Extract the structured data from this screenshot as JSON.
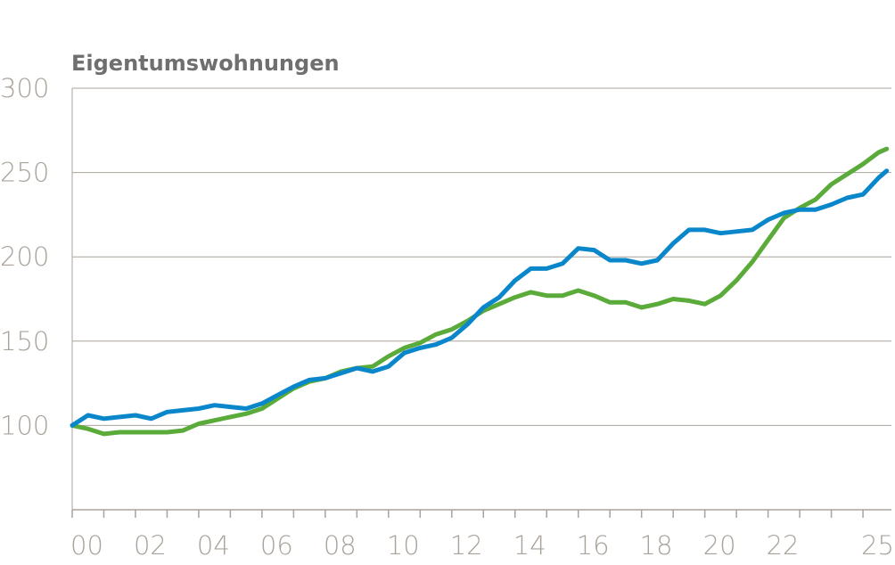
{
  "chart_data": {
    "type": "line",
    "title": "Eigentumswohnungen",
    "x": [
      2000,
      2000.5,
      2001,
      2001.5,
      2002,
      2002.5,
      2003,
      2003.5,
      2004,
      2004.5,
      2005,
      2005.5,
      2006,
      2006.5,
      2007,
      2007.5,
      2008,
      2008.5,
      2009,
      2009.5,
      2010,
      2010.5,
      2011,
      2011.5,
      2012,
      2012.5,
      2013,
      2013.5,
      2014,
      2014.5,
      2015,
      2015.5,
      2016,
      2016.5,
      2017,
      2017.5,
      2018,
      2018.5,
      2019,
      2019.5,
      2020,
      2020.5,
      2021,
      2021.5,
      2022,
      2022.5,
      2023,
      2023.5,
      2024,
      2024.5,
      2025,
      2025.5,
      2025.75
    ],
    "series": [
      {
        "color": "#5aab3a",
        "values": [
          100,
          98,
          95,
          96,
          96,
          96,
          96,
          97,
          101,
          103,
          105,
          107,
          110,
          116,
          122,
          126,
          128,
          132,
          134,
          135,
          141,
          146,
          149,
          154,
          157,
          162,
          168,
          172,
          176,
          179,
          177,
          177,
          180,
          177,
          173,
          173,
          170,
          172,
          175,
          174,
          172,
          177,
          186,
          197,
          210,
          223,
          229,
          234,
          243,
          249,
          255,
          262,
          264
        ]
      },
      {
        "color": "#0a87cb",
        "values": [
          100,
          106,
          104,
          105,
          106,
          104,
          108,
          109,
          110,
          112,
          111,
          110,
          113,
          118,
          123,
          127,
          128,
          131,
          134,
          132,
          135,
          143,
          146,
          148,
          152,
          160,
          170,
          176,
          186,
          193,
          193,
          196,
          205,
          204,
          198,
          198,
          196,
          198,
          208,
          216,
          216,
          214,
          215,
          216,
          222,
          226,
          228,
          228,
          231,
          235,
          237,
          247,
          251
        ]
      }
    ],
    "xlim": [
      2000,
      2025.9
    ],
    "xticks": [
      {
        "value": 2000,
        "label": "00"
      },
      {
        "value": 2002,
        "label": "02"
      },
      {
        "value": 2004,
        "label": "04"
      },
      {
        "value": 2006,
        "label": "06"
      },
      {
        "value": 2008,
        "label": "08"
      },
      {
        "value": 2010,
        "label": "10"
      },
      {
        "value": 2012,
        "label": "12"
      },
      {
        "value": 2014,
        "label": "14"
      },
      {
        "value": 2016,
        "label": "16"
      },
      {
        "value": 2018,
        "label": "18"
      },
      {
        "value": 2020,
        "label": "20"
      },
      {
        "value": 2022,
        "label": "22"
      },
      {
        "value": 2025,
        "label": "25"
      }
    ],
    "xminorticks": [
      2001,
      2003,
      2005,
      2007,
      2009,
      2011,
      2013,
      2015,
      2017,
      2019,
      2021,
      2023,
      2024
    ],
    "ylim": [
      50,
      300
    ],
    "yticks": [
      100,
      150,
      200,
      250,
      300
    ],
    "grid": true
  }
}
